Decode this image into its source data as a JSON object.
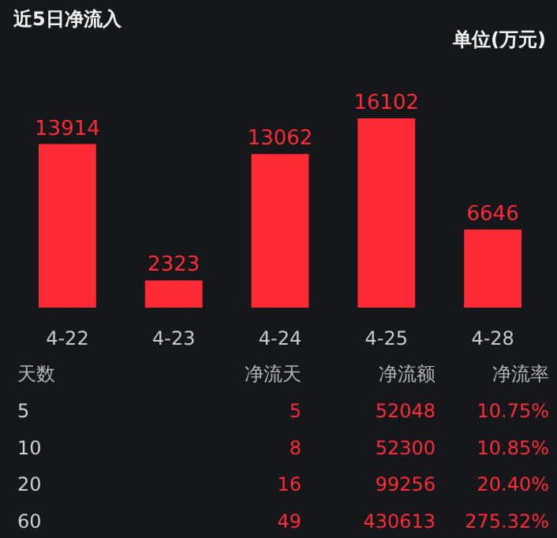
{
  "chart_data": {
    "type": "bar",
    "title": "近5日净流入",
    "subtitle": "单位(万元)",
    "categories": [
      "4-22",
      "4-23",
      "4-24",
      "4-25",
      "4-28"
    ],
    "values": [
      13914,
      2323,
      13062,
      16102,
      6646
    ],
    "color": "#fe2b37",
    "data_labels": true,
    "annotations": [
      "天数",
      "净流天",
      "净流额",
      "净流率",
      "5",
      "5",
      "52048",
      "10.75%",
      "10",
      "8",
      "52300",
      "10.85%",
      "20",
      "16",
      "99256",
      "20.40%",
      "60",
      "49",
      "430613",
      "275.32%"
    ]
  }
}
